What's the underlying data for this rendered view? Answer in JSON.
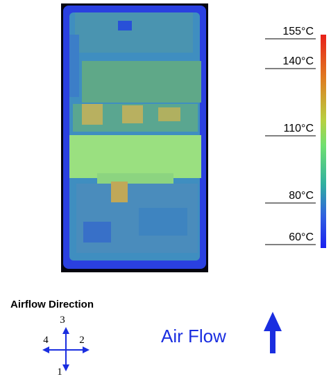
{
  "colorbar": {
    "labels": [
      "155°C",
      "140°C",
      "110°C",
      "80°C",
      "60°C"
    ]
  },
  "airflow_direction": {
    "title": "Airflow Direction",
    "labels": [
      "3",
      "4",
      "2",
      "1"
    ]
  },
  "air_flow": "Air Flow"
}
